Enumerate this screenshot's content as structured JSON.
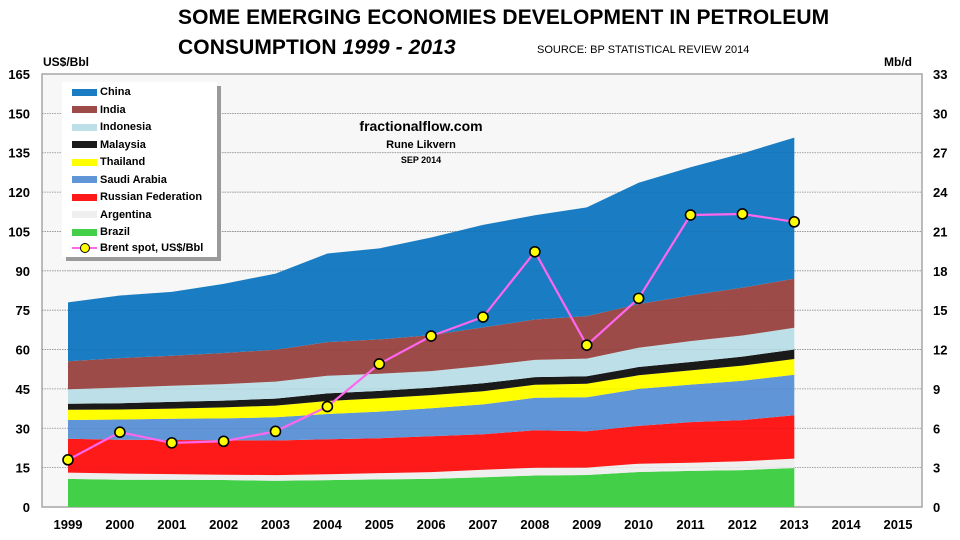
{
  "header": {
    "title_line1": "SOME EMERGING ECONOMIES DEVELOPMENT IN PETROLEUM",
    "title_line2_prefix": "CONSUMPTION ",
    "title_line2_years": "1999 - 2013",
    "source": "SOURCE: BP STATISTICAL REVIEW 2014"
  },
  "annotations": {
    "site": "fractionalflow.com",
    "author": "Rune Likvern",
    "date": "SEP 2014"
  },
  "chart_data": {
    "type": "area",
    "title": "SOME EMERGING ECONOMIES DEVELOPMENT IN PETROLEUM CONSUMPTION 1999 - 2013",
    "subtitle": "SOURCE: BP STATISTICAL REVIEW 2014",
    "stacked": true,
    "x": [
      1999,
      2000,
      2001,
      2002,
      2003,
      2004,
      2005,
      2006,
      2007,
      2008,
      2009,
      2010,
      2011,
      2012,
      2013
    ],
    "x_ticks": [
      "1999",
      "2000",
      "2001",
      "2002",
      "2003",
      "2004",
      "2005",
      "2006",
      "2007",
      "2008",
      "2009",
      "2010",
      "2011",
      "2012",
      "2013",
      "2014",
      "2015"
    ],
    "xlim": [
      1999,
      2015
    ],
    "y_left": {
      "label": "US$/Bbl",
      "range": [
        0,
        165
      ],
      "ticks": [
        "0",
        "15",
        "30",
        "45",
        "60",
        "75",
        "90",
        "105",
        "120",
        "135",
        "150",
        "165"
      ]
    },
    "y_right": {
      "label": "Mb/d",
      "range": [
        0,
        33
      ],
      "ticks": [
        "0",
        "3",
        "6",
        "9",
        "12",
        "15",
        "18",
        "21",
        "24",
        "27",
        "30",
        "33"
      ]
    },
    "grid": true,
    "legend_placement": "top-left",
    "series": [
      {
        "name": "Brazil",
        "axis": "right",
        "color": "#43d048",
        "values": [
          2.14,
          2.08,
          2.07,
          2.06,
          2.0,
          2.05,
          2.1,
          2.14,
          2.27,
          2.4,
          2.44,
          2.67,
          2.75,
          2.81,
          2.97
        ]
      },
      {
        "name": "Argentina",
        "axis": "right",
        "color": "#efefef",
        "values": [
          0.48,
          0.47,
          0.44,
          0.4,
          0.43,
          0.45,
          0.48,
          0.52,
          0.57,
          0.59,
          0.56,
          0.63,
          0.62,
          0.67,
          0.72
        ]
      },
      {
        "name": "Russian Federation",
        "axis": "right",
        "color": "#ff1a1a",
        "values": [
          2.58,
          2.58,
          2.6,
          2.62,
          2.64,
          2.66,
          2.66,
          2.73,
          2.7,
          2.86,
          2.77,
          2.88,
          3.1,
          3.14,
          3.31
        ]
      },
      {
        "name": "Saudi Arabia",
        "axis": "right",
        "color": "#6096d8",
        "values": [
          1.43,
          1.54,
          1.62,
          1.67,
          1.77,
          1.93,
          2.03,
          2.14,
          2.28,
          2.47,
          2.6,
          2.82,
          2.86,
          3.0,
          3.08
        ]
      },
      {
        "name": "Thailand",
        "axis": "right",
        "color": "#ffff00",
        "values": [
          0.78,
          0.76,
          0.77,
          0.84,
          0.89,
          0.99,
          1.02,
          1.0,
          1.0,
          0.99,
          1.03,
          1.04,
          1.08,
          1.16,
          1.2
        ]
      },
      {
        "name": "Malaysia",
        "axis": "right",
        "color": "#1a1a1a",
        "values": [
          0.46,
          0.48,
          0.51,
          0.52,
          0.53,
          0.58,
          0.56,
          0.57,
          0.61,
          0.59,
          0.56,
          0.63,
          0.64,
          0.68,
          0.72
        ]
      },
      {
        "name": "Indonesia",
        "axis": "right",
        "color": "#bde0e8",
        "values": [
          1.11,
          1.19,
          1.23,
          1.26,
          1.3,
          1.35,
          1.31,
          1.26,
          1.32,
          1.31,
          1.35,
          1.47,
          1.59,
          1.61,
          1.66
        ]
      },
      {
        "name": "India",
        "axis": "right",
        "color": "#9c4b48",
        "values": [
          2.13,
          2.25,
          2.28,
          2.37,
          2.43,
          2.56,
          2.61,
          2.74,
          2.94,
          3.08,
          3.24,
          3.32,
          3.49,
          3.65,
          3.73
        ]
      },
      {
        "name": "China",
        "axis": "right",
        "color": "#1a7dc4",
        "values": [
          4.48,
          4.77,
          4.87,
          5.26,
          5.8,
          6.75,
          6.94,
          7.44,
          7.81,
          7.94,
          8.28,
          9.25,
          9.76,
          10.23,
          10.76
        ]
      }
    ],
    "line_series": {
      "name": "Brent spot, US$/Bbl",
      "axis": "left",
      "color": "#ff66ee",
      "marker_color": "#ffff00",
      "values": [
        17.97,
        28.5,
        24.44,
        25.02,
        28.83,
        38.27,
        54.52,
        65.14,
        72.39,
        97.26,
        61.67,
        79.5,
        111.26,
        111.67,
        108.66
      ]
    }
  },
  "legend": {
    "items": [
      {
        "label": "China",
        "color": "#1a7dc4"
      },
      {
        "label": "India",
        "color": "#9c4b48"
      },
      {
        "label": "Indonesia",
        "color": "#bde0e8"
      },
      {
        "label": "Malaysia",
        "color": "#1a1a1a"
      },
      {
        "label": "Thailand",
        "color": "#ffff00"
      },
      {
        "label": "Saudi Arabia",
        "color": "#6096d8"
      },
      {
        "label": "Russian Federation",
        "color": "#ff1a1a"
      },
      {
        "label": "Argentina",
        "color": "#efefef"
      },
      {
        "label": "Brazil",
        "color": "#43d048"
      }
    ],
    "line_label": "Brent spot, US$/Bbl"
  }
}
